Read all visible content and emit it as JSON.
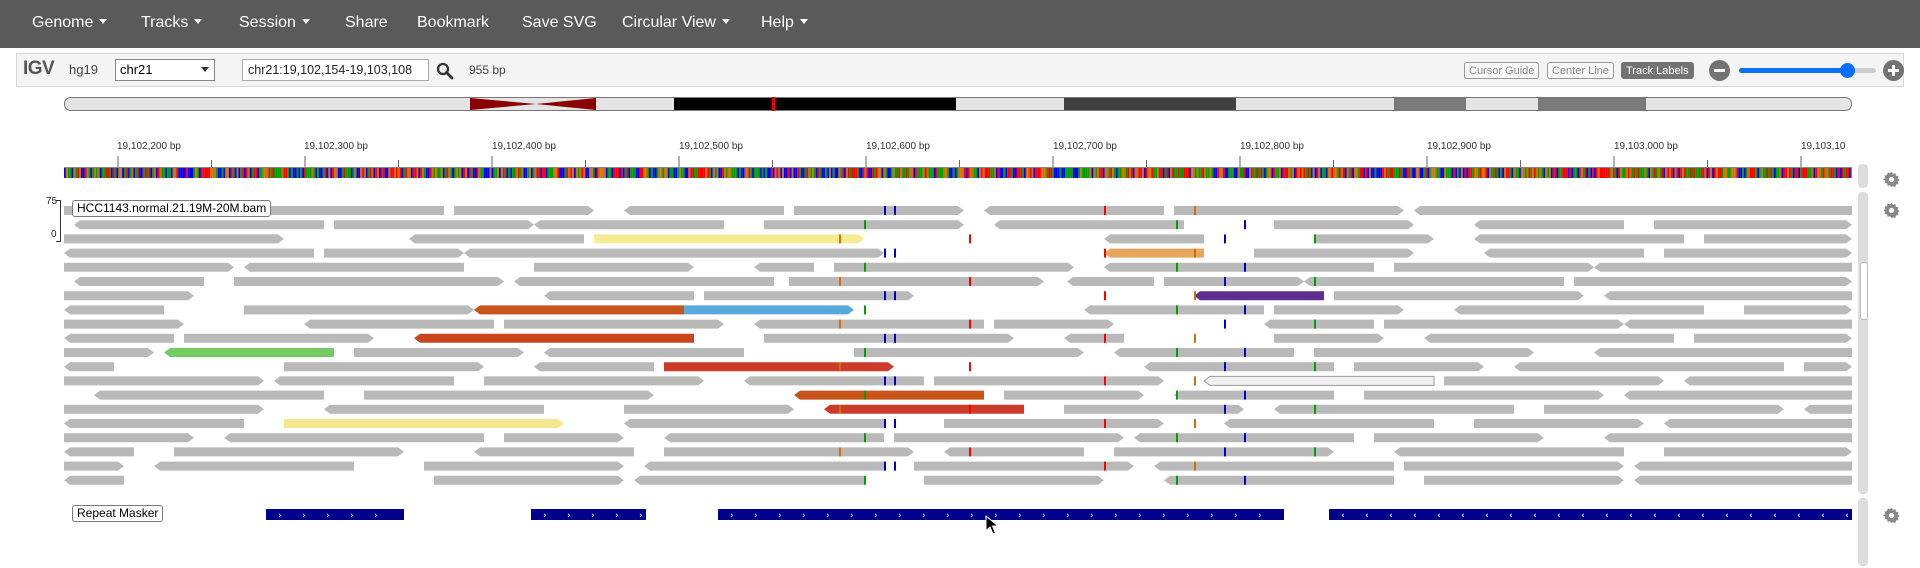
{
  "menu": {
    "items": [
      {
        "label": "Genome",
        "dropdown": true,
        "name": "menu-genome"
      },
      {
        "label": "Tracks",
        "dropdown": true,
        "name": "menu-tracks"
      },
      {
        "label": "Session",
        "dropdown": true,
        "name": "menu-session"
      },
      {
        "label": "Share",
        "dropdown": false,
        "name": "menu-share"
      },
      {
        "label": "Bookmark",
        "dropdown": false,
        "name": "menu-bookmark"
      },
      {
        "label": "Save SVG",
        "dropdown": false,
        "name": "menu-save-svg"
      },
      {
        "label": "Circular View",
        "dropdown": true,
        "name": "menu-circular-view"
      },
      {
        "label": "Help",
        "dropdown": true,
        "name": "menu-help"
      }
    ]
  },
  "toolbar": {
    "logo": "IGV",
    "genome": "hg19",
    "chromosome": "chr21",
    "locus": "chr21:19,102,154-19,103,108",
    "width_label": "955 bp",
    "cursor_guide": "Cursor Guide",
    "center_line": "Center Line",
    "track_labels": "Track Labels",
    "zoom_level": 0.79
  },
  "ruler": {
    "ticks": [
      "19,102,200 bp",
      "19,102,300 bp",
      "19,102,400 bp",
      "19,102,500 bp",
      "19,102,600 bp",
      "19,102,700 bp",
      "19,102,800 bp",
      "19,102,900 bp",
      "19,103,000 bp",
      "19,103,10"
    ]
  },
  "tracks": {
    "alignment": {
      "label": "HCC1143.normal.21.19M-20M.bam",
      "range_max": "75",
      "range_min": "0"
    },
    "repeat": {
      "label": "Repeat Masker"
    }
  },
  "colors": {
    "navbar": "#5a5a5a",
    "read": "#b9b9b9",
    "repeat": "#00008b",
    "accent": "#0b6efd",
    "cytoband_acen": "#8b0000"
  },
  "icons": [
    "search-icon",
    "gear-icon",
    "zoom-out-icon",
    "zoom-in-icon",
    "mouse-cursor-icon"
  ]
}
